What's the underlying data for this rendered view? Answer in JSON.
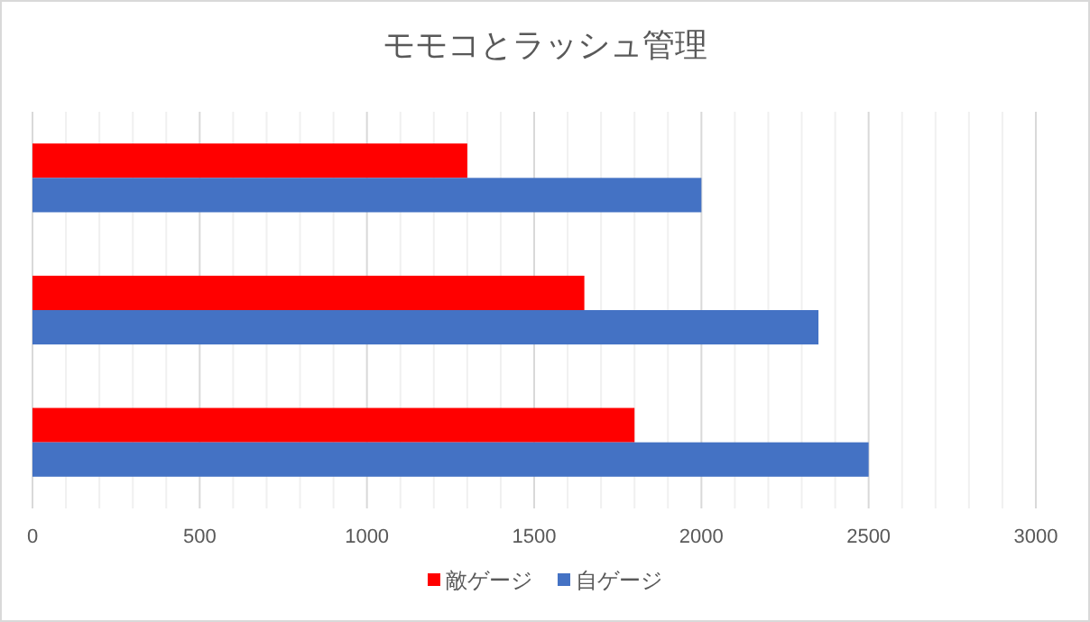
{
  "chart_data": {
    "type": "bar",
    "orientation": "horizontal",
    "title": "モモコとラッシュ管理",
    "categories": [
      null,
      null,
      null
    ],
    "series": [
      {
        "name": "敵ゲージ",
        "color": "#ff0000",
        "values": [
          1300,
          1650,
          1800
        ]
      },
      {
        "name": "自ゲージ",
        "color": "#4472c4",
        "values": [
          2000,
          2350,
          2500
        ]
      }
    ],
    "xlim": [
      0,
      3000
    ],
    "xticks": [
      0,
      500,
      1000,
      1500,
      2000,
      2500,
      3000
    ],
    "grid": "x",
    "legend": "bottom"
  }
}
